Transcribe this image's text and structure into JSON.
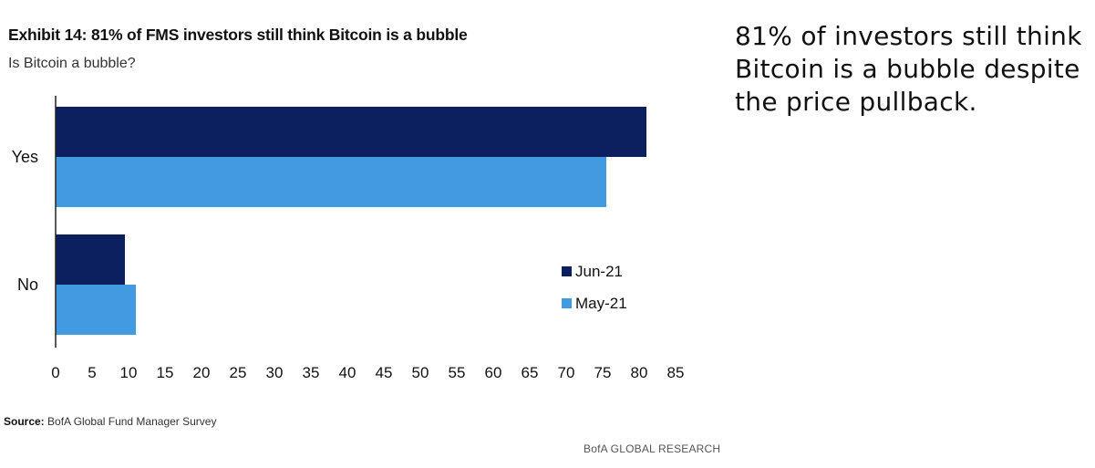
{
  "header": {
    "title": "Exhibit 14: 81% of FMS investors still think Bitcoin is a bubble",
    "subtitle": "Is Bitcoin a bubble?"
  },
  "footer": {
    "source_label": "Source:",
    "source_text": "BofA Global Fund Manager Survey",
    "brand": "BofA GLOBAL RESEARCH"
  },
  "side_note": {
    "text": "81% of investors still think Bitcoin is a bubble despite the price pullback."
  },
  "chart_data": {
    "type": "bar",
    "orientation": "horizontal",
    "categories": [
      "Yes",
      "No"
    ],
    "series": [
      {
        "name": "Jun-21",
        "values": [
          81,
          9.5
        ],
        "color": "#0c1f5e"
      },
      {
        "name": "May-21",
        "values": [
          75.5,
          11
        ],
        "color": "#429be0"
      }
    ],
    "xlim": [
      0,
      85
    ],
    "xticks": [
      0,
      5,
      10,
      15,
      20,
      25,
      30,
      35,
      40,
      45,
      50,
      55,
      60,
      65,
      70,
      75,
      80,
      85
    ],
    "grid": false,
    "legend_position": "bottom-right"
  }
}
